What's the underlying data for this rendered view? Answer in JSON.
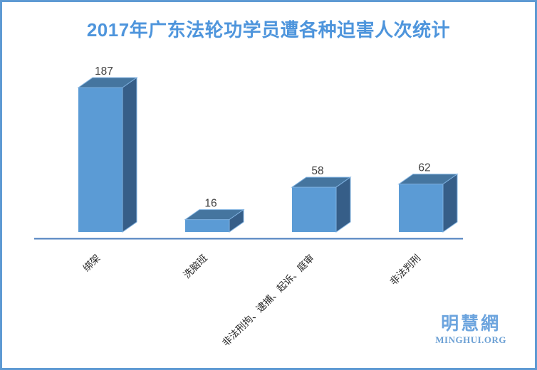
{
  "frame": {
    "background": "#FFFFFF",
    "border_color": "#5E9AD3"
  },
  "chart_data": {
    "type": "bar",
    "style": "3d-bar",
    "title": "2017年广东法轮功学员遭各种迫害人次统计",
    "title_color": "#4E95DC",
    "categories": [
      "绑架",
      "洗脑班",
      "非法刑拘、逮捕、起诉、庭审",
      "非法判刑"
    ],
    "values": [
      187,
      16,
      58,
      62
    ],
    "xlabel": "",
    "ylabel": "",
    "ylim": [
      0,
      200
    ],
    "grid": false,
    "legend": false,
    "category_label_rotation_deg": 45,
    "bar_colors": {
      "front": "#5B9BD5",
      "top": "#45759F",
      "side": "#365E88",
      "edge": "#7EB0DF"
    },
    "value_label_color": "#404040",
    "category_label_color": "#262626",
    "axis_line_color": "#4A7EBE"
  },
  "logo": {
    "line1": "明慧網",
    "line2": "MINGHUI.ORG",
    "line1_color": "#6CA4DE",
    "line2_color": "#6CA0D4"
  }
}
